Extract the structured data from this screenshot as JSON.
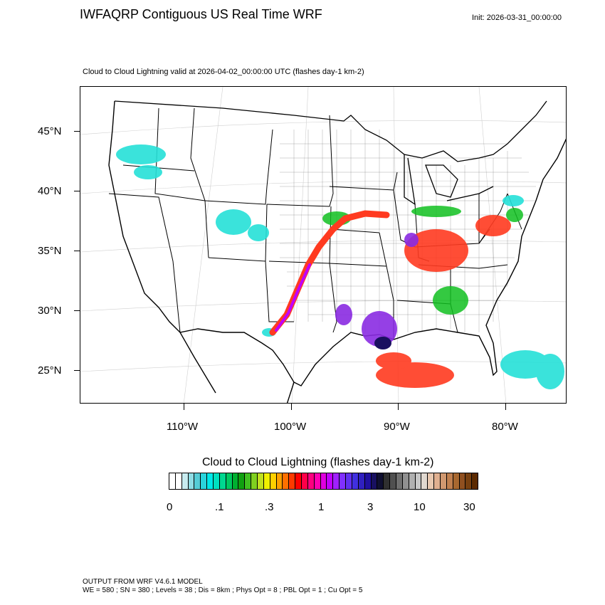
{
  "header": {
    "title": "IWFAQRP Contiguous US Real Time WRF",
    "init": "Init: 2026-03-31_00:00:00"
  },
  "map": {
    "subtitle": "Cloud to Cloud Lightning valid at 2026-04-02_00:00:00 UTC   (flashes day-1 km-2)",
    "lat_labels": [
      "45°N",
      "40°N",
      "35°N",
      "30°N",
      "25°N"
    ],
    "lon_labels": [
      "110°W",
      "100°W",
      "90°W",
      "80°W"
    ],
    "colors": {
      "land": "#ffffff",
      "borders": "#000000",
      "low": "#25e0d8",
      "mid": "#10c020",
      "high": "#ff3a20",
      "peak": "#8a2be2",
      "max": "#1a1060"
    }
  },
  "colorbar": {
    "title": "Cloud to Cloud Lightning  (flashes day-1 km-2)",
    "ticks": [
      "0",
      ".1",
      ".3",
      "1",
      "3",
      "10",
      "30"
    ],
    "colors": [
      "#ffffff",
      "#ffffff",
      "#c8ecf0",
      "#8fdce4",
      "#55ccd6",
      "#2ad4dc",
      "#00e8e8",
      "#00e0c0",
      "#00d890",
      "#00c860",
      "#00b030",
      "#10a010",
      "#40c020",
      "#80d020",
      "#c0e020",
      "#f0f000",
      "#ffd000",
      "#ffa000",
      "#ff7000",
      "#ff3a00",
      "#ff0000",
      "#ff0048",
      "#ff0080",
      "#ff00b0",
      "#e000e0",
      "#c000ff",
      "#a020ff",
      "#8030ff",
      "#6030f0",
      "#4030e0",
      "#3020c0",
      "#2010a0",
      "#181060",
      "#101030",
      "#303030",
      "#505050",
      "#707070",
      "#909090",
      "#b0b0b0",
      "#c8c8c8",
      "#e0d8d0",
      "#e8c8b0",
      "#e0b090",
      "#d09870",
      "#c08050",
      "#a86830",
      "#905020",
      "#784010",
      "#5c2a00"
    ]
  },
  "footer": {
    "line1": "OUTPUT FROM WRF V4.6.1 MODEL",
    "line2": "WE = 580 ; SN = 380 ; Levels = 38 ; Dis = 8km ; Phys Opt = 8 ; PBL Opt = 1 ; Cu Opt = 5"
  }
}
